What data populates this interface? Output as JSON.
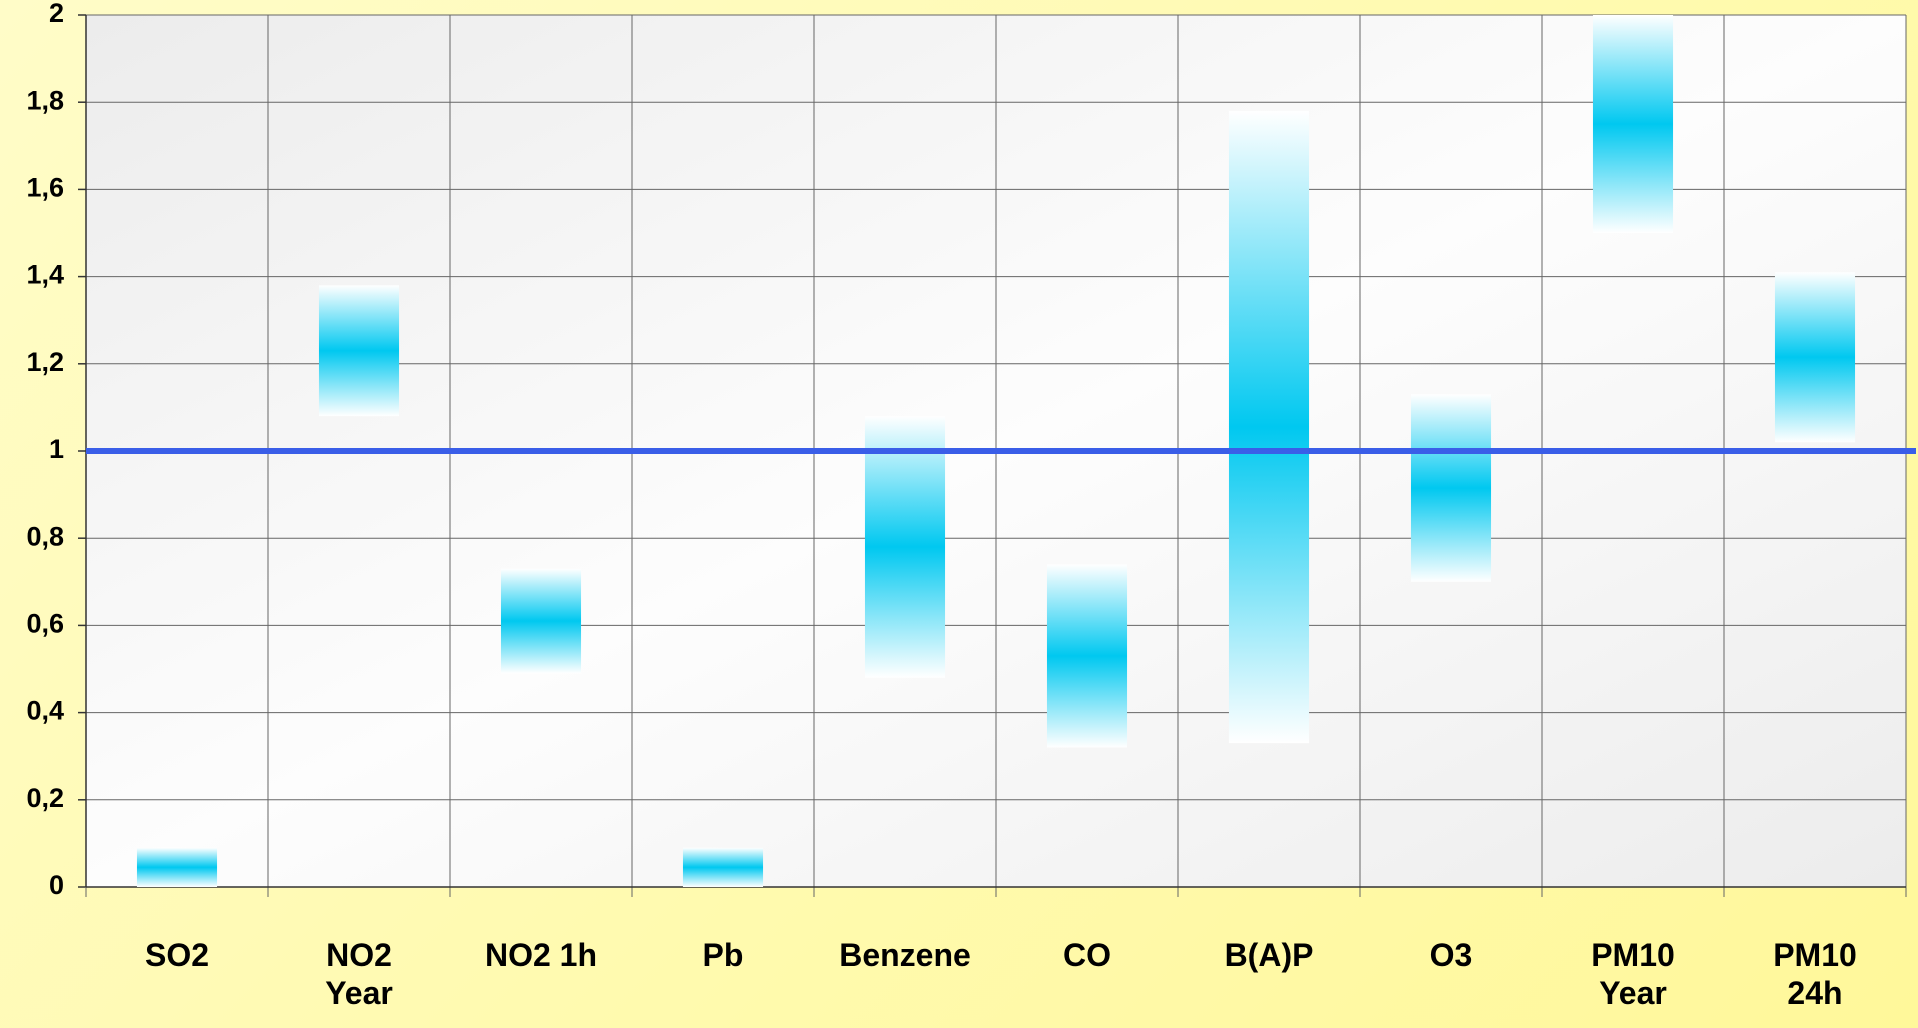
{
  "chart_data": {
    "type": "range_bar",
    "categories": [
      "SO2",
      "NO2\nYear",
      "NO2 1h",
      "Pb",
      "Benzene",
      "CO",
      "B(A)P",
      "O3",
      "PM10\nYear",
      "PM10\n24h"
    ],
    "low": [
      0,
      1.08,
      0.49,
      0,
      0.48,
      0.32,
      0.33,
      0.7,
      1.5,
      1.02
    ],
    "high": [
      0.09,
      1.38,
      0.73,
      0.09,
      1.08,
      0.74,
      1.78,
      1.13,
      2,
      1.41
    ],
    "color": "#00c8f0",
    "reference_line": 1,
    "reference_color": "#3a5ee8",
    "ylim": [
      0,
      2
    ],
    "yticks": [
      0,
      {
        "value": 0.2,
        "label": "0,2"
      },
      {
        "value": 0.4,
        "label": "0,4"
      },
      {
        "value": 0.6,
        "label": "0,6"
      },
      {
        "value": 0.8,
        "label": "0,8"
      },
      1,
      {
        "value": 1.2,
        "label": "1,2"
      },
      {
        "value": 1.4,
        "label": "1,4"
      },
      {
        "value": 1.6,
        "label": "1,6"
      },
      {
        "value": 1.8,
        "label": "1,8"
      },
      2
    ],
    "grid": true
  }
}
